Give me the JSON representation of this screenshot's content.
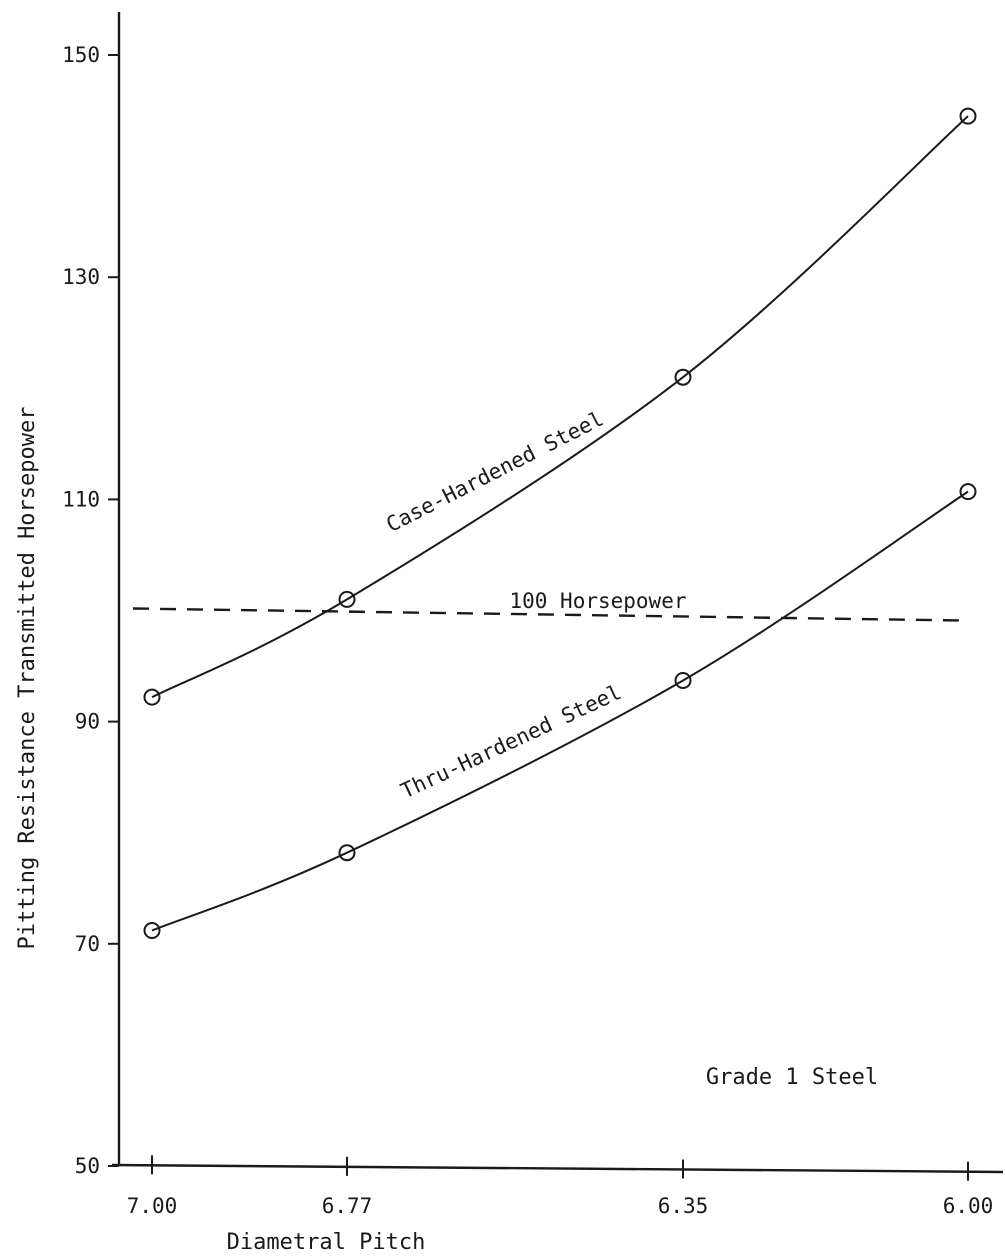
{
  "chart_data": {
    "type": "line",
    "title": "",
    "xlabel": "Diametral Pitch",
    "ylabel": "Pitting Resistance Transmitted Horsepower",
    "x_ticks": [
      "7.00",
      "6.77",
      "6.35",
      "6.00"
    ],
    "x": [
      7.0,
      6.77,
      6.35,
      6.0
    ],
    "xlim": [
      7.05,
      5.96
    ],
    "x_reversed": true,
    "y_ticks": [
      "50",
      "70",
      "90",
      "110",
      "130",
      "150"
    ],
    "ylim": [
      50,
      152
    ],
    "grid": false,
    "series": [
      {
        "name": "Case-Hardened Steel",
        "values": [
          92.2,
          101.0,
          121.0,
          144.5
        ]
      },
      {
        "name": "Thru-Hardened Steel",
        "values": [
          71.2,
          78.2,
          93.7,
          110.7
        ]
      }
    ],
    "reference_line": {
      "label": "100 Horsepower",
      "y": 100
    },
    "annotations": [
      "Grade 1 Steel"
    ]
  }
}
